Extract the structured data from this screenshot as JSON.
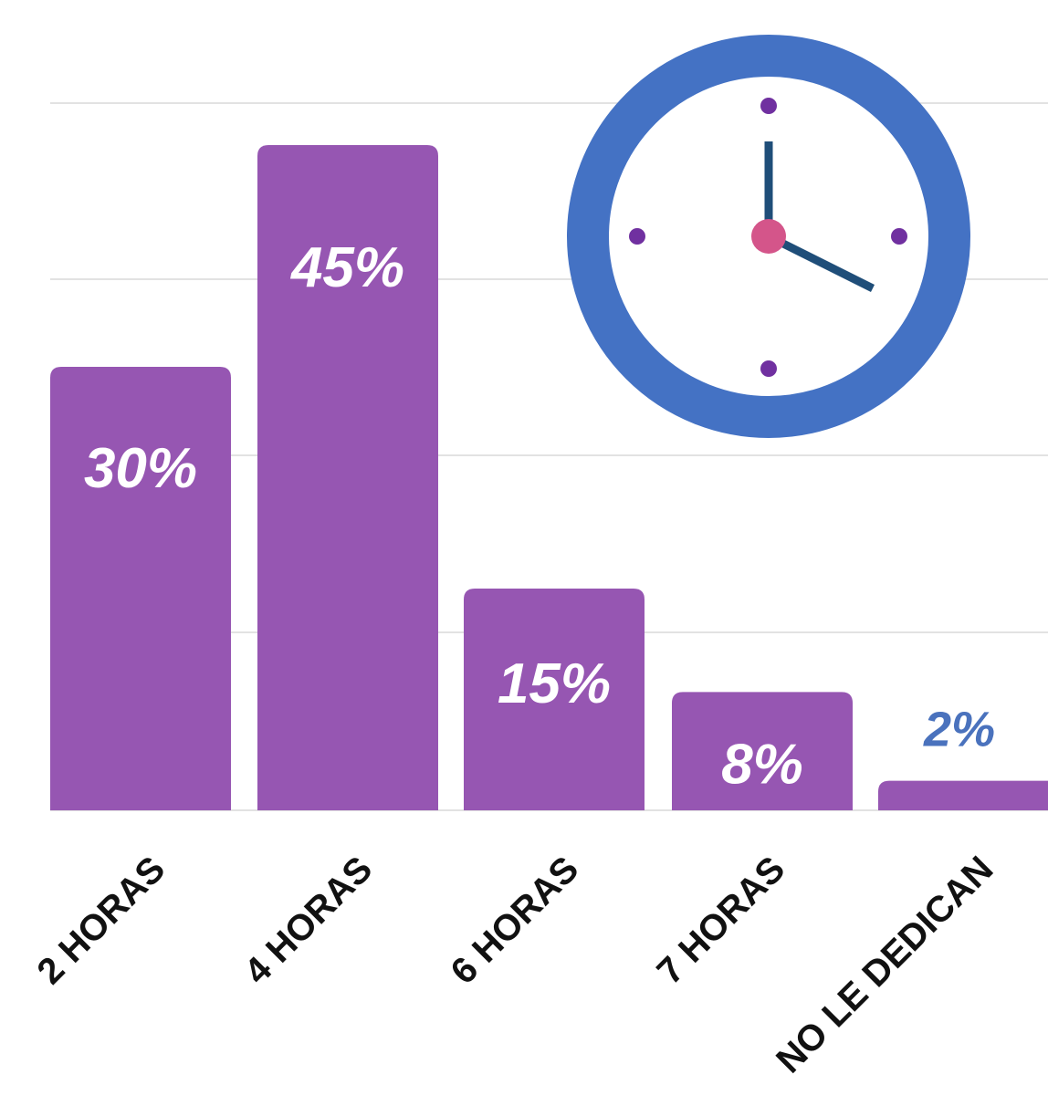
{
  "chart_data": {
    "type": "bar",
    "categories": [
      "2 HORAS",
      "4 HORAS",
      "6 HORAS",
      "7 HORAS",
      "NO LE DEDICAN"
    ],
    "values": [
      30,
      45,
      15,
      8,
      2
    ],
    "value_labels": [
      "30%",
      "45%",
      "15%",
      "8%",
      "2%"
    ],
    "title": "",
    "xlabel": "",
    "ylabel": "",
    "ylim": [
      0,
      45
    ],
    "grid": true,
    "legend": "none"
  },
  "colors": {
    "bar": "#9656b2",
    "label_inside": "#ffffff",
    "label_outside": "#4a72bd",
    "category_text": "#111111",
    "grid": "#d9d9d9",
    "clock_ring": "#4472c4",
    "clock_face": "#ffffff",
    "clock_hands": "#1f4e79",
    "clock_center": "#d4558a",
    "clock_markers": "#7030a0"
  },
  "decoration": {
    "icon": "clock-icon"
  }
}
